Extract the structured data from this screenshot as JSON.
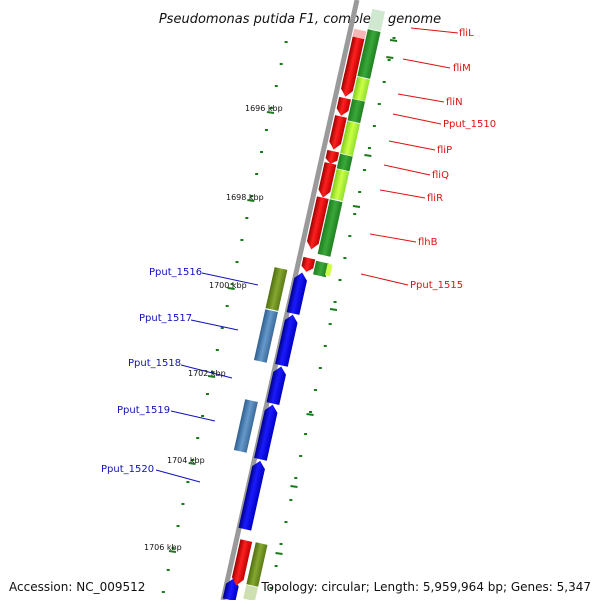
{
  "title": "Pseudomonas putida F1, complete genome",
  "footer": {
    "accession": "Accession: NC_009512",
    "topology": "Topology: circular; Length: 5,959,964 bp; Genes: 5,347"
  },
  "ticks": [
    {
      "label": "1696 kbp"
    },
    {
      "label": "1698 kbp"
    },
    {
      "label": "1700 kbp"
    },
    {
      "label": "1702 kbp"
    },
    {
      "label": "1704 kbp"
    },
    {
      "label": "1706 kbp"
    }
  ],
  "genes": [
    {
      "name": "fliL",
      "strand": "forward",
      "color": "#dd1111"
    },
    {
      "name": "fliM",
      "strand": "forward",
      "color": "#dd1111"
    },
    {
      "name": "fliN",
      "strand": "forward",
      "color": "#dd1111"
    },
    {
      "name": "Pput_1510",
      "strand": "forward",
      "color": "#dd1111"
    },
    {
      "name": "fliP",
      "strand": "forward",
      "color": "#dd1111"
    },
    {
      "name": "fliQ",
      "strand": "forward",
      "color": "#dd1111"
    },
    {
      "name": "fliR",
      "strand": "forward",
      "color": "#dd1111"
    },
    {
      "name": "flhB",
      "strand": "forward",
      "color": "#dd1111"
    },
    {
      "name": "Pput_1515",
      "strand": "forward",
      "color": "#dd1111"
    },
    {
      "name": "Pput_1516",
      "strand": "reverse",
      "color": "#1111bb"
    },
    {
      "name": "Pput_1517",
      "strand": "reverse",
      "color": "#1111bb"
    },
    {
      "name": "Pput_1518",
      "strand": "reverse",
      "color": "#1111bb"
    },
    {
      "name": "Pput_1519",
      "strand": "reverse",
      "color": "#1111bb"
    },
    {
      "name": "Pput_1520",
      "strand": "reverse",
      "color": "#1111bb"
    }
  ],
  "colors": {
    "forward_feature": "#ee0000",
    "reverse_feature": "#0000ee",
    "backbone": "#888888",
    "tick": "#1a7a1a"
  }
}
